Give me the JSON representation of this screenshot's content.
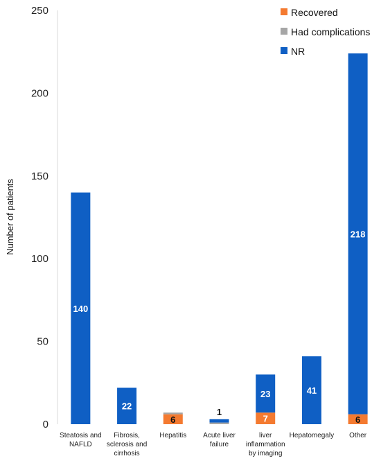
{
  "chart_data": {
    "type": "bar",
    "stacked": true,
    "title": "",
    "xlabel": "",
    "ylabel": "Number of patients",
    "ylim": [
      0,
      250
    ],
    "yticks": [
      0,
      50,
      100,
      150,
      200,
      250
    ],
    "grid": false,
    "legend_position": "top-right",
    "categories": [
      [
        "Steatosis and",
        "NAFLD"
      ],
      [
        "Fibrosis,",
        "sclerosis and",
        "cirrhosis"
      ],
      [
        "Hepatitis"
      ],
      [
        "Acute liver",
        "failure"
      ],
      [
        "liver",
        "inflammation",
        "by imaging"
      ],
      [
        "Hepatomegaly"
      ],
      [
        "Other"
      ]
    ],
    "series": [
      {
        "name": "Recovered",
        "color": "#F47A30",
        "values": [
          0,
          0,
          6,
          0,
          7,
          0,
          6
        ]
      },
      {
        "name": "Had complications",
        "color": "#A6A6A6",
        "values": [
          0,
          0,
          1,
          1,
          0,
          0,
          0
        ]
      },
      {
        "name": "NR",
        "color": "#0F5FC4",
        "values": [
          140,
          22,
          0,
          2,
          23,
          41,
          218
        ]
      }
    ],
    "data_labels": [
      {
        "category_index": 0,
        "text": "140",
        "style": "white"
      },
      {
        "category_index": 1,
        "text": "22",
        "style": "white"
      },
      {
        "category_index": 2,
        "text": "6",
        "style": "dark"
      },
      {
        "category_index": 3,
        "text": "1",
        "style": "dark"
      },
      {
        "category_index": 4,
        "text": "7",
        "style": "white"
      },
      {
        "category_index": 4,
        "text": "23",
        "style": "white"
      },
      {
        "category_index": 5,
        "text": "41",
        "style": "white"
      },
      {
        "category_index": 6,
        "text": "6",
        "style": "dark"
      },
      {
        "category_index": 6,
        "text": "218",
        "style": "white"
      }
    ]
  }
}
